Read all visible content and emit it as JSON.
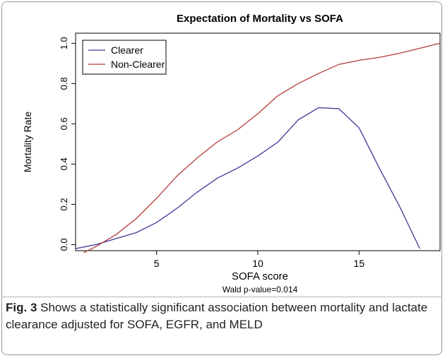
{
  "chart_data": {
    "type": "line",
    "title": "Expectation of Mortality vs SOFA",
    "x_label": "SOFA score",
    "y_label": "Mortality Rate",
    "annotation": "Wald p-value=0.014",
    "xlim": [
      1,
      19
    ],
    "ylim": [
      -0.03,
      1.05
    ],
    "xticks": [
      5,
      10,
      15
    ],
    "yticks": [
      {
        "value": 0,
        "label": "0.0"
      },
      0.2,
      0.4,
      0.6,
      0.8,
      {
        "value": 1,
        "label": "1.0"
      }
    ],
    "legend": "top-left",
    "series": [
      {
        "name": "Clearer",
        "color": "#3b3b9a",
        "x": [
          1,
          2,
          3,
          4,
          5,
          6,
          7,
          8,
          9,
          10,
          11,
          12,
          13,
          14,
          15,
          16,
          17,
          18
        ],
        "values": [
          -0.02,
          0.0,
          0.03,
          0.06,
          0.11,
          0.18,
          0.26,
          0.33,
          0.38,
          0.44,
          0.51,
          0.62,
          0.68,
          0.675,
          0.58,
          0.38,
          0.19,
          -0.02
        ]
      },
      {
        "name": "Non-Clearer",
        "color": "#b43a3a",
        "x": [
          1.4,
          2,
          3,
          4,
          5,
          6,
          7,
          8,
          9,
          10,
          11,
          12,
          13,
          14,
          15,
          16,
          17,
          18,
          19
        ],
        "values": [
          -0.04,
          -0.01,
          0.05,
          0.13,
          0.23,
          0.34,
          0.43,
          0.51,
          0.57,
          0.65,
          0.74,
          0.8,
          0.85,
          0.895,
          0.915,
          0.93,
          0.95,
          0.975,
          1.0
        ]
      }
    ]
  },
  "caption": {
    "label": "Fig. 3",
    "text": "Shows a statistically significant association between mortality and lactate clearance adjusted for SOFA, EGFR, and MELD"
  }
}
